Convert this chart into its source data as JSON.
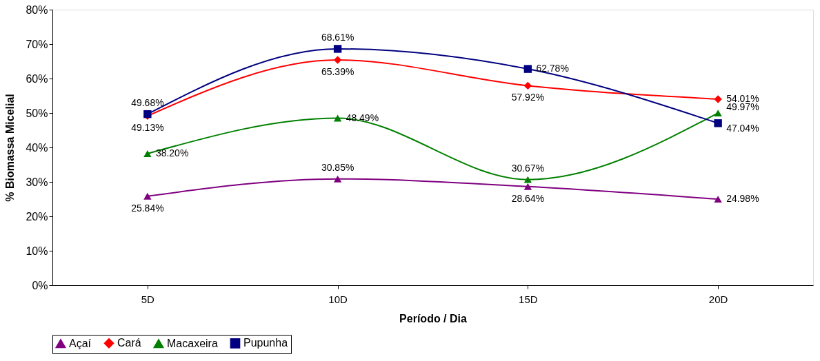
{
  "chart_data": {
    "type": "line",
    "xlabel": "Período / Dia",
    "ylabel": "% Biomassa Micelial",
    "categories": [
      "5D",
      "10D",
      "15D",
      "20D"
    ],
    "ylim": [
      0,
      80
    ],
    "yticks": [
      {
        "value": 0,
        "label": "0%"
      },
      {
        "value": 10,
        "label": "10%"
      },
      {
        "value": 20,
        "label": "20%"
      },
      {
        "value": 30,
        "label": "30%"
      },
      {
        "value": 40,
        "label": "40%"
      },
      {
        "value": 50,
        "label": "50%"
      },
      {
        "value": 60,
        "label": "60%"
      },
      {
        "value": 70,
        "label": "70%"
      },
      {
        "value": 80,
        "label": "80%"
      }
    ],
    "grid": false,
    "legend": "bottom",
    "series": [
      {
        "name": "Açaí",
        "color": "#800080",
        "marker": "triangle",
        "values": [
          25.84,
          30.85,
          28.64,
          24.98
        ],
        "value_labels": [
          "25.84%",
          "30.85%",
          "28.64%",
          "24.98%"
        ]
      },
      {
        "name": "Cará",
        "color": "#ff0000",
        "marker": "diamond",
        "values": [
          49.13,
          65.39,
          57.92,
          54.01
        ],
        "value_labels": [
          "49.13%",
          "65.39%",
          "57.92%",
          "54.01%"
        ]
      },
      {
        "name": "Macaxeira",
        "color": "#008000",
        "marker": "triangle",
        "values": [
          38.2,
          48.49,
          30.67,
          49.97
        ],
        "value_labels": [
          "38.20%",
          "48.49%",
          "30.67%",
          "49.97%"
        ]
      },
      {
        "name": "Pupunha",
        "color": "#000080",
        "marker": "square",
        "values": [
          49.68,
          68.61,
          62.78,
          47.04
        ],
        "value_labels": [
          "49.68%",
          "68.61%",
          "62.78%",
          "47.04%"
        ]
      }
    ]
  }
}
